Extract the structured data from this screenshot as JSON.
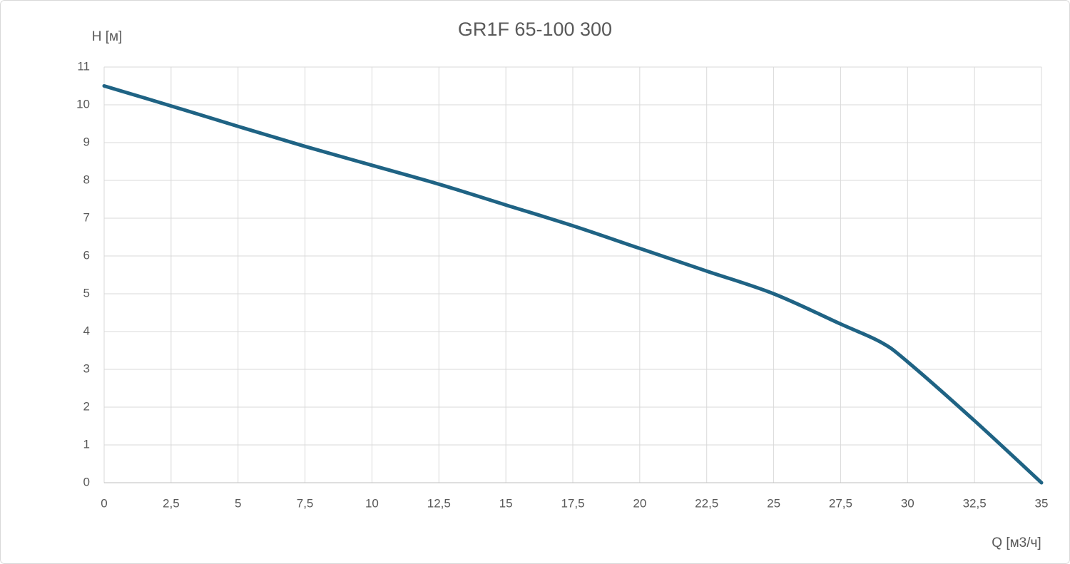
{
  "chart_data": {
    "type": "line",
    "title": "GR1F 65-100 300",
    "y_label": "H [м]",
    "x_label": "Q [м3/ч]",
    "x": [
      0,
      2.5,
      5,
      7.5,
      10,
      12.5,
      15,
      17.5,
      20,
      22.5,
      25,
      27.5,
      29,
      30,
      32.5,
      35
    ],
    "series": [
      {
        "name": "GR1F 65-100 300",
        "color": "#1f6384",
        "values": [
          10.5,
          9.97,
          9.43,
          8.9,
          8.4,
          7.9,
          7.35,
          6.8,
          6.2,
          5.6,
          5.0,
          4.2,
          3.72,
          3.2,
          1.64,
          0
        ]
      }
    ],
    "xlim": [
      0,
      35
    ],
    "xticks": [
      0,
      {
        "value": 2.5,
        "label": "2,5"
      },
      5,
      {
        "value": 7.5,
        "label": "7,5"
      },
      10,
      {
        "value": 12.5,
        "label": "12,5"
      },
      15,
      {
        "value": 17.5,
        "label": "17,5"
      },
      20,
      {
        "value": 22.5,
        "label": "22,5"
      },
      25,
      {
        "value": 27.5,
        "label": "27,5"
      },
      30,
      {
        "value": 32.5,
        "label": "32,5"
      },
      35
    ],
    "ylim": [
      0,
      11
    ],
    "yticks": [
      0,
      1,
      2,
      3,
      4,
      5,
      6,
      7,
      8,
      9,
      10,
      11
    ],
    "grid": true
  }
}
